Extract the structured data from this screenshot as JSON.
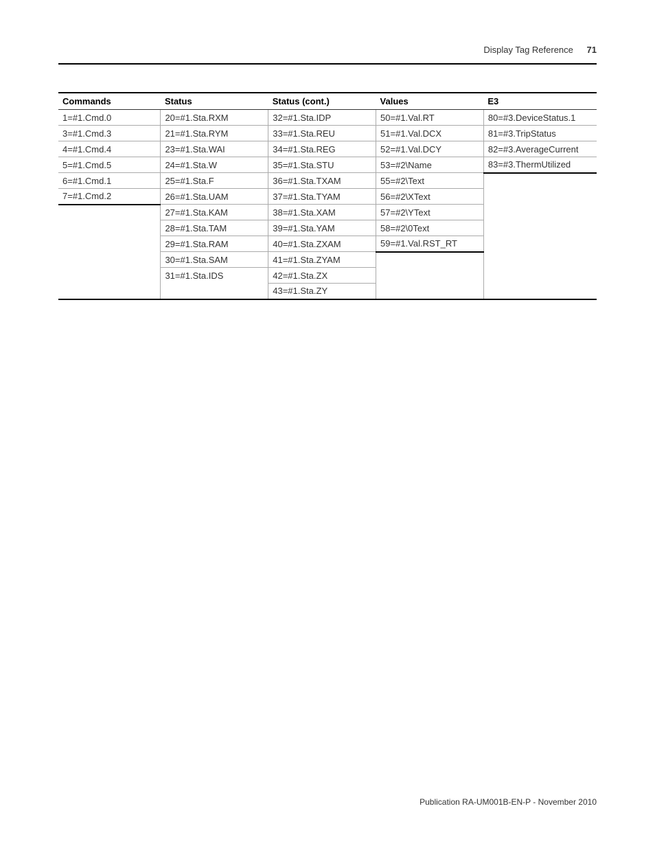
{
  "header": {
    "title": "Display Tag Reference",
    "pagenum": "71"
  },
  "table": {
    "columns": [
      "Commands",
      "Status",
      "Status (cont.)",
      "Values",
      "E3"
    ],
    "col_widths": [
      "19%",
      "20%",
      "20%",
      "20%",
      "21%"
    ],
    "rows": [
      [
        "1=#1.Cmd.0",
        "20=#1.Sta.RXM",
        "32=#1.Sta.IDP",
        "50=#1.Val.RT",
        "80=#3.DeviceStatus.1"
      ],
      [
        "3=#1.Cmd.3",
        "21=#1.Sta.RYM",
        "33=#1.Sta.REU",
        "51=#1.Val.DCX",
        "81=#3.TripStatus"
      ],
      [
        "4=#1.Cmd.4",
        "23=#1.Sta.WAI",
        "34=#1.Sta.REG",
        "52=#1.Val.DCY",
        "82=#3.AverageCurrent"
      ],
      [
        "5=#1.Cmd.5",
        "24=#1.Sta.W",
        "35=#1.Sta.STU",
        "53=#2\\Name",
        "83=#3.ThermUtilized"
      ],
      [
        "6=#1.Cmd.1",
        "25=#1.Sta.F",
        "36=#1.Sta.TXAM",
        "55=#2\\Text",
        null
      ],
      [
        "7=#1.Cmd.2",
        "26=#1.Sta.UAM",
        "37=#1.Sta.TYAM",
        "56=#2\\XText",
        null
      ],
      [
        null,
        "27=#1.Sta.KAM",
        "38=#1.Sta.XAM",
        "57=#2\\YText",
        null
      ],
      [
        null,
        "28=#1.Sta.TAM",
        "39=#1.Sta.YAM",
        "58=#2\\0Text",
        null
      ],
      [
        null,
        "29=#1.Sta.RAM",
        "40=#1.Sta.ZXAM",
        "59=#1.Val.RST_RT",
        null
      ],
      [
        null,
        "30=#1.Sta.SAM",
        "41=#1.Sta.ZYAM",
        null,
        null
      ],
      [
        null,
        "31=#1.Sta.IDS",
        "42=#1.Sta.ZX",
        null,
        null
      ],
      [
        null,
        null,
        "43=#1.Sta.ZY",
        null,
        null
      ]
    ],
    "col_close_row": [
      5,
      11,
      11,
      8,
      3
    ]
  },
  "footer": {
    "text": "Publication RA-UM001B-EN-P - November 2010"
  }
}
